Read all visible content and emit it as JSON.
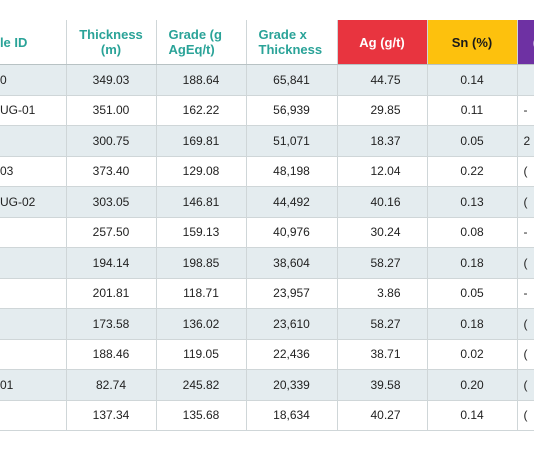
{
  "headers": {
    "hole_id": "ole ID",
    "thickness": "Thickness (m)",
    "grade": "Grade (g AgEq/t)",
    "grade_x_thickness": "Grade x Thickness",
    "ag": "Ag (g/t)",
    "sn": "Sn (%)",
    "extra": "("
  },
  "colors": {
    "header_text": "#2aa398",
    "ag_header": "#e8343f",
    "sn_header": "#fdc10d",
    "extra_header": "#6e31a3",
    "row_alt": "#e4ecef"
  },
  "rows": [
    {
      "id": "0",
      "thickness": "349.03",
      "grade": "188.64",
      "gxt": "65,841",
      "ag": "44.75",
      "sn": "0.14",
      "extra": ""
    },
    {
      "id": "UG-01",
      "thickness": "351.00",
      "grade": "162.22",
      "gxt": "56,939",
      "ag": "29.85",
      "sn": "0.11",
      "extra": "-"
    },
    {
      "id": "",
      "thickness": "300.75",
      "grade": "169.81",
      "gxt": "51,071",
      "ag": "18.37",
      "sn": "0.05",
      "extra": "2"
    },
    {
      "id": "03",
      "thickness": "373.40",
      "grade": "129.08",
      "gxt": "48,198",
      "ag": "12.04",
      "sn": "0.22",
      "extra": "("
    },
    {
      "id": "UG-02",
      "thickness": "303.05",
      "grade": "146.81",
      "gxt": "44,492",
      "ag": "40.16",
      "sn": "0.13",
      "extra": "("
    },
    {
      "id": "",
      "thickness": "257.50",
      "grade": "159.13",
      "gxt": "40,976",
      "ag": "30.24",
      "sn": "0.08",
      "extra": "-"
    },
    {
      "id": "",
      "thickness": "194.14",
      "grade": "198.85",
      "gxt": "38,604",
      "ag": "58.27",
      "sn": "0.18",
      "extra": "("
    },
    {
      "id": "",
      "thickness": "201.81",
      "grade": "118.71",
      "gxt": "23,957",
      "ag": "3.86",
      "sn": "0.05",
      "extra": "-"
    },
    {
      "id": "",
      "thickness": "173.58",
      "grade": "136.02",
      "gxt": "23,610",
      "ag": "58.27",
      "sn": "0.18",
      "extra": "("
    },
    {
      "id": "",
      "thickness": "188.46",
      "grade": "119.05",
      "gxt": "22,436",
      "ag": "38.71",
      "sn": "0.02",
      "extra": "("
    },
    {
      "id": "01",
      "thickness": "82.74",
      "grade": "245.82",
      "gxt": "20,339",
      "ag": "39.58",
      "sn": "0.20",
      "extra": "("
    },
    {
      "id": "",
      "thickness": "137.34",
      "grade": "135.68",
      "gxt": "18,634",
      "ag": "40.27",
      "sn": "0.14",
      "extra": "("
    }
  ]
}
